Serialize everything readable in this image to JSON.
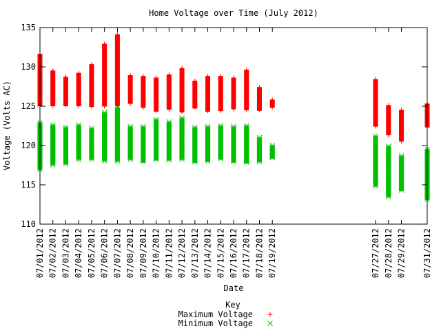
{
  "chart_data": {
    "type": "scatter",
    "title": "Home Voltage over Time (July 2012)",
    "xlabel": "Date",
    "ylabel": "Voltage (Volts AC)",
    "ylim": [
      110,
      135
    ],
    "yticks": [
      "110",
      "115",
      "120",
      "125",
      "130",
      "135"
    ],
    "xlim": [
      "2012-07-01",
      "2012-07-31"
    ],
    "grid": false,
    "legend_title": "Key",
    "legend_position": "bottom-center",
    "colors": {
      "max": "#ff0000",
      "min": "#00c000"
    },
    "categories": [
      {
        "date": "2012-07-01",
        "label": "07/01/2012"
      },
      {
        "date": "2012-07-02",
        "label": "07/02/2012"
      },
      {
        "date": "2012-07-03",
        "label": "07/03/2012"
      },
      {
        "date": "2012-07-04",
        "label": "07/04/2012"
      },
      {
        "date": "2012-07-05",
        "label": "07/05/2012"
      },
      {
        "date": "2012-07-06",
        "label": "07/06/2012"
      },
      {
        "date": "2012-07-07",
        "label": "07/07/2012"
      },
      {
        "date": "2012-07-08",
        "label": "07/08/2012"
      },
      {
        "date": "2012-07-09",
        "label": "07/09/2012"
      },
      {
        "date": "2012-07-10",
        "label": "07/10/2012"
      },
      {
        "date": "2012-07-11",
        "label": "07/11/2012"
      },
      {
        "date": "2012-07-12",
        "label": "07/12/2012"
      },
      {
        "date": "2012-07-13",
        "label": "07/13/2012"
      },
      {
        "date": "2012-07-14",
        "label": "07/14/2012"
      },
      {
        "date": "2012-07-15",
        "label": "07/15/2012"
      },
      {
        "date": "2012-07-16",
        "label": "07/16/2012"
      },
      {
        "date": "2012-07-17",
        "label": "07/17/2012"
      },
      {
        "date": "2012-07-18",
        "label": "07/18/2012"
      },
      {
        "date": "2012-07-19",
        "label": "07/19/2012"
      },
      {
        "date": "2012-07-27",
        "label": "07/27/2012"
      },
      {
        "date": "2012-07-28",
        "label": "07/28/2012"
      },
      {
        "date": "2012-07-29",
        "label": "07/29/2012"
      },
      {
        "date": "2012-07-31",
        "label": "07/31/2012"
      }
    ],
    "series": [
      {
        "name": "Maximum Voltage",
        "marker": "plus",
        "ranges": [
          {
            "date": "2012-07-01",
            "low": 125.0,
            "high": 131.6
          },
          {
            "date": "2012-07-02",
            "low": 125.0,
            "high": 129.5
          },
          {
            "date": "2012-07-03",
            "low": 125.0,
            "high": 128.7
          },
          {
            "date": "2012-07-04",
            "low": 125.0,
            "high": 129.2
          },
          {
            "date": "2012-07-05",
            "low": 124.9,
            "high": 130.3
          },
          {
            "date": "2012-07-06",
            "low": 125.0,
            "high": 132.9
          },
          {
            "date": "2012-07-07",
            "low": 125.0,
            "high": 134.1
          },
          {
            "date": "2012-07-08",
            "low": 125.3,
            "high": 128.9
          },
          {
            "date": "2012-07-09",
            "low": 124.8,
            "high": 128.8
          },
          {
            "date": "2012-07-10",
            "low": 124.3,
            "high": 128.6
          },
          {
            "date": "2012-07-11",
            "low": 124.6,
            "high": 129.0
          },
          {
            "date": "2012-07-12",
            "low": 124.2,
            "high": 129.8
          },
          {
            "date": "2012-07-13",
            "low": 124.7,
            "high": 128.2
          },
          {
            "date": "2012-07-14",
            "low": 124.3,
            "high": 128.8
          },
          {
            "date": "2012-07-15",
            "low": 124.4,
            "high": 128.8
          },
          {
            "date": "2012-07-16",
            "low": 124.6,
            "high": 128.6
          },
          {
            "date": "2012-07-17",
            "low": 124.5,
            "high": 129.6
          },
          {
            "date": "2012-07-18",
            "low": 124.4,
            "high": 127.4
          },
          {
            "date": "2012-07-19",
            "low": 124.8,
            "high": 125.8
          },
          {
            "date": "2012-07-27",
            "low": 122.4,
            "high": 128.4
          },
          {
            "date": "2012-07-28",
            "low": 121.3,
            "high": 125.1
          },
          {
            "date": "2012-07-29",
            "low": 120.5,
            "high": 124.5
          },
          {
            "date": "2012-07-31",
            "low": 122.3,
            "high": 125.3
          }
        ]
      },
      {
        "name": "Minimum Voltage",
        "marker": "cross",
        "ranges": [
          {
            "date": "2012-07-01",
            "low": 116.9,
            "high": 122.9
          },
          {
            "date": "2012-07-02",
            "low": 117.5,
            "high": 122.6
          },
          {
            "date": "2012-07-03",
            "low": 117.6,
            "high": 122.3
          },
          {
            "date": "2012-07-04",
            "low": 118.2,
            "high": 122.6
          },
          {
            "date": "2012-07-05",
            "low": 118.2,
            "high": 122.2
          },
          {
            "date": "2012-07-06",
            "low": 118.0,
            "high": 124.2
          },
          {
            "date": "2012-07-07",
            "low": 118.0,
            "high": 124.8
          },
          {
            "date": "2012-07-08",
            "low": 118.2,
            "high": 122.4
          },
          {
            "date": "2012-07-09",
            "low": 117.8,
            "high": 122.4
          },
          {
            "date": "2012-07-10",
            "low": 118.1,
            "high": 123.3
          },
          {
            "date": "2012-07-11",
            "low": 118.1,
            "high": 123.0
          },
          {
            "date": "2012-07-12",
            "low": 118.2,
            "high": 123.5
          },
          {
            "date": "2012-07-13",
            "low": 117.8,
            "high": 122.3
          },
          {
            "date": "2012-07-14",
            "low": 117.9,
            "high": 122.4
          },
          {
            "date": "2012-07-15",
            "low": 118.2,
            "high": 122.5
          },
          {
            "date": "2012-07-16",
            "low": 117.8,
            "high": 122.4
          },
          {
            "date": "2012-07-17",
            "low": 117.7,
            "high": 122.5
          },
          {
            "date": "2012-07-18",
            "low": 117.9,
            "high": 121.0
          },
          {
            "date": "2012-07-19",
            "low": 118.3,
            "high": 120.0
          },
          {
            "date": "2012-07-27",
            "low": 114.8,
            "high": 121.2
          },
          {
            "date": "2012-07-28",
            "low": 113.4,
            "high": 119.9
          },
          {
            "date": "2012-07-29",
            "low": 114.2,
            "high": 118.7
          },
          {
            "date": "2012-07-31",
            "low": 113.1,
            "high": 119.5
          }
        ]
      }
    ]
  }
}
